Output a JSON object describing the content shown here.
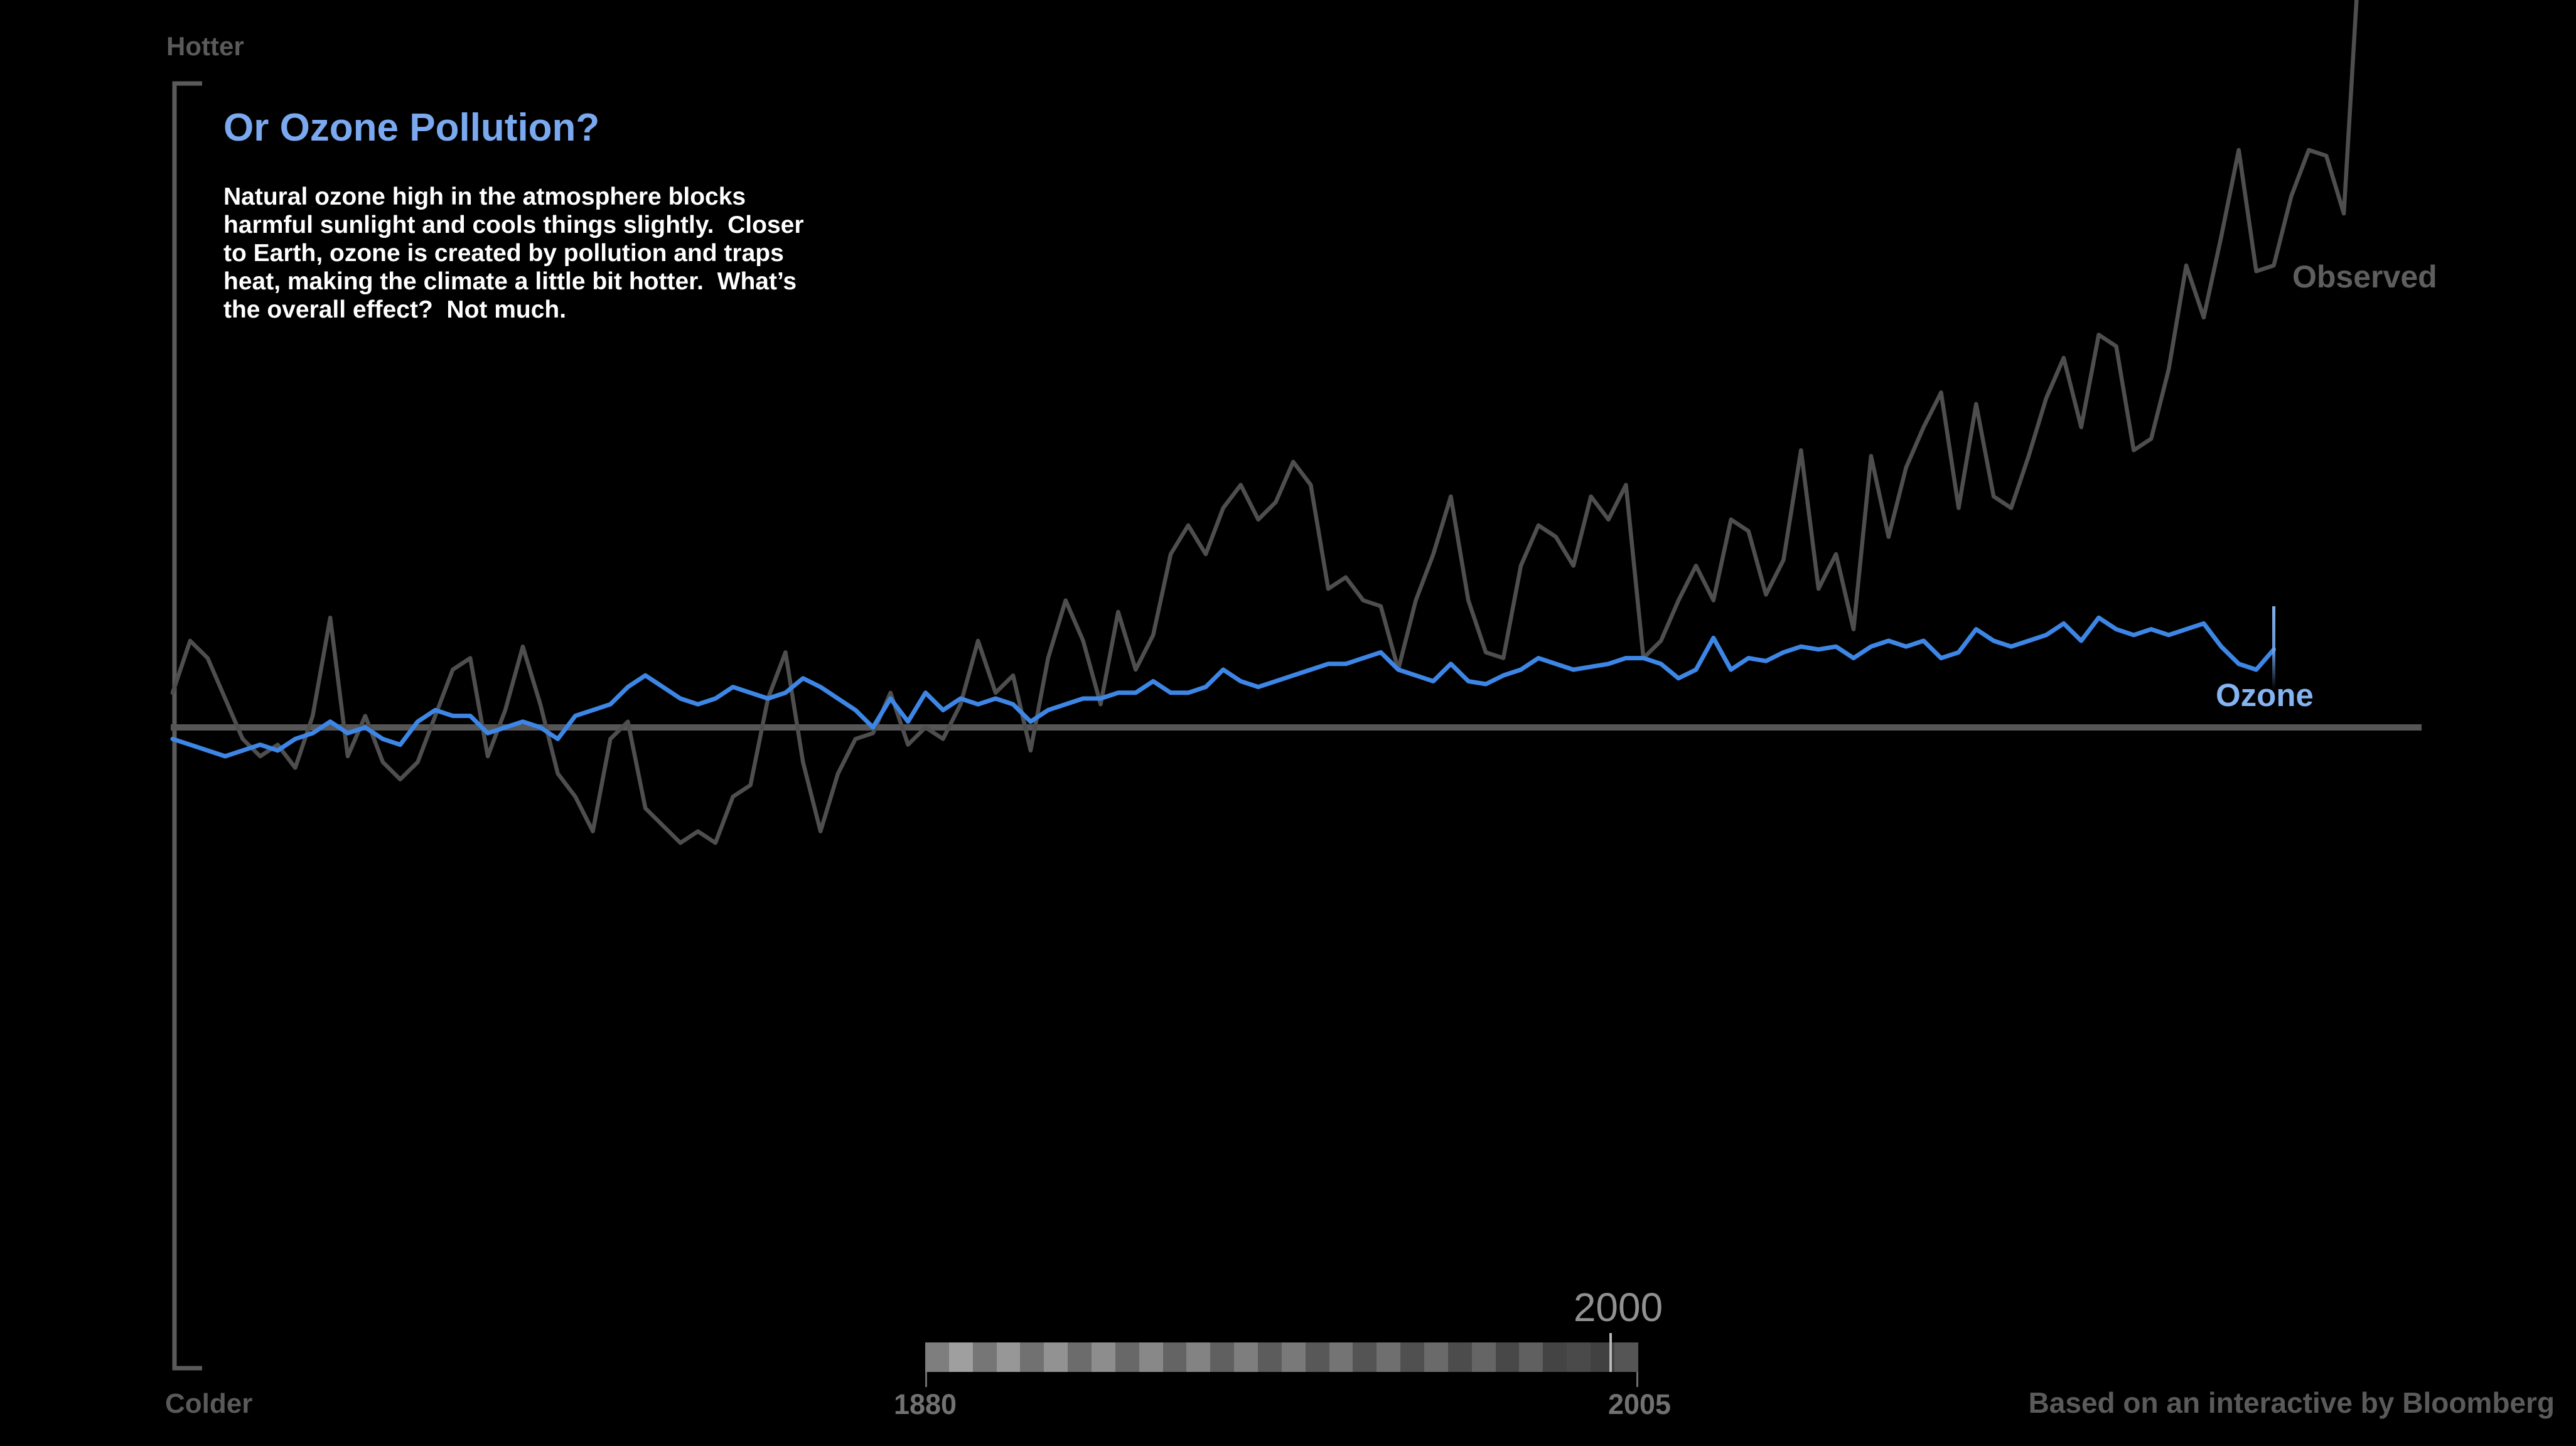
{
  "page": {
    "background": "#000000"
  },
  "axis": {
    "top_label": "Hotter",
    "bottom_label": "Colder",
    "bracket_color": "#5a5a5a",
    "baseline_color": "#565656"
  },
  "story": {
    "title": "Or Ozone Pollution?",
    "title_color": "#7aa9f0",
    "body": "Natural ozone high in the atmosphere blocks\nharmful sunlight and cools things slightly.  Closer\nto Earth, ozone is created by pollution and traps\nheat, making the climate a little bit hotter.  What’s\nthe overall effect?  Not much."
  },
  "chart_data": {
    "type": "line",
    "title": "Or Ozone Pollution?",
    "x_range": [
      1880,
      2005
    ],
    "start_year": 1880,
    "baseline": 0,
    "ylim": [
      -1.24,
      1.26
    ],
    "grid": false,
    "legend": "inline-labels",
    "y_axis_top_label": "Hotter",
    "y_axis_bottom_label": "Colder",
    "cursor_year": 2000,
    "units": "temperature anomaly (relative to zero baseline)",
    "series": [
      {
        "name": "Observed",
        "color": "#4e4e4e",
        "label_color": "#5e5e5e",
        "start_year": 1880,
        "values": [
          0.06,
          0.15,
          0.12,
          0.05,
          -0.02,
          -0.05,
          -0.03,
          -0.07,
          0.02,
          0.19,
          -0.05,
          0.02,
          -0.06,
          -0.09,
          -0.06,
          0.02,
          0.1,
          0.12,
          -0.05,
          0.03,
          0.14,
          0.04,
          -0.08,
          -0.12,
          -0.18,
          -0.02,
          0.01,
          -0.14,
          -0.17,
          -0.2,
          -0.18,
          -0.2,
          -0.12,
          -0.1,
          0.05,
          0.13,
          -0.06,
          -0.18,
          -0.08,
          -0.02,
          -0.01,
          0.06,
          -0.03,
          0.0,
          -0.02,
          0.04,
          0.15,
          0.06,
          0.09,
          -0.04,
          0.12,
          0.22,
          0.15,
          0.04,
          0.2,
          0.1,
          0.16,
          0.3,
          0.35,
          0.3,
          0.38,
          0.42,
          0.36,
          0.39,
          0.46,
          0.42,
          0.24,
          0.26,
          0.22,
          0.21,
          0.1,
          0.22,
          0.3,
          0.4,
          0.22,
          0.13,
          0.12,
          0.28,
          0.35,
          0.33,
          0.28,
          0.4,
          0.36,
          0.42,
          0.12,
          0.15,
          0.22,
          0.28,
          0.22,
          0.36,
          0.34,
          0.23,
          0.29,
          0.48,
          0.24,
          0.3,
          0.17,
          0.47,
          0.33,
          0.45,
          0.52,
          0.58,
          0.38,
          0.56,
          0.4,
          0.38,
          0.47,
          0.57,
          0.64,
          0.52,
          0.68,
          0.66,
          0.48,
          0.5,
          0.62,
          0.8,
          0.71,
          0.85,
          1.0,
          0.79,
          0.8,
          0.92,
          1.0,
          0.99,
          0.89,
          1.4
        ]
      },
      {
        "name": "Ozone",
        "color": "#3d86e6",
        "label_color": "#85b4f3",
        "start_year": 1880,
        "end_marker": "vertical-cursor",
        "values": [
          -0.02,
          -0.03,
          -0.04,
          -0.05,
          -0.04,
          -0.03,
          -0.04,
          -0.02,
          -0.01,
          0.01,
          -0.01,
          0.0,
          -0.02,
          -0.03,
          0.01,
          0.03,
          0.02,
          0.02,
          -0.01,
          0.0,
          0.01,
          0.0,
          -0.02,
          0.02,
          0.03,
          0.04,
          0.07,
          0.09,
          0.07,
          0.05,
          0.04,
          0.05,
          0.07,
          0.06,
          0.05,
          0.06,
          0.085,
          0.07,
          0.05,
          0.03,
          0.0,
          0.05,
          0.01,
          0.06,
          0.03,
          0.05,
          0.04,
          0.05,
          0.04,
          0.01,
          0.03,
          0.04,
          0.05,
          0.05,
          0.06,
          0.06,
          0.08,
          0.06,
          0.06,
          0.07,
          0.1,
          0.08,
          0.07,
          0.08,
          0.09,
          0.1,
          0.11,
          0.11,
          0.12,
          0.13,
          0.1,
          0.09,
          0.08,
          0.11,
          0.08,
          0.075,
          0.09,
          0.1,
          0.12,
          0.11,
          0.1,
          0.105,
          0.11,
          0.12,
          0.12,
          0.11,
          0.085,
          0.1,
          0.155,
          0.1,
          0.12,
          0.115,
          0.13,
          0.14,
          0.135,
          0.14,
          0.12,
          0.14,
          0.15,
          0.14,
          0.15,
          0.12,
          0.13,
          0.17,
          0.15,
          0.14,
          0.15,
          0.16,
          0.18,
          0.15,
          0.19,
          0.17,
          0.16,
          0.17,
          0.16,
          0.17,
          0.18,
          0.14,
          0.11,
          0.1,
          0.135
        ]
      }
    ],
    "annotations": [
      {
        "text": "Observed",
        "color": "#5e5e5e"
      },
      {
        "text": "Ozone",
        "color": "#85b4f3"
      }
    ]
  },
  "labels": {
    "observed": "Observed",
    "ozone": "Ozone"
  },
  "timeline": {
    "start_label": "1880",
    "end_label": "2005",
    "cursor_label": "2000",
    "cursor_year": 2000,
    "start_year": 1880,
    "end_year": 2005,
    "tick_color": "#b9b9b9",
    "stripes": [
      "#7e7e7e",
      "#9f9f9f",
      "#767676",
      "#979797",
      "#717171",
      "#929292",
      "#6c6c6c",
      "#8d8d8d",
      "#686868",
      "#888888",
      "#646464",
      "#838383",
      "#606060",
      "#7e7e7e",
      "#5c5c5c",
      "#797979",
      "#585858",
      "#747474",
      "#545454",
      "#6f6f6f",
      "#505050",
      "#6a6a6a",
      "#4c4c4c",
      "#656565",
      "#484848",
      "#606060",
      "#444444",
      "#4a4a4a",
      "#414141",
      "#555555"
    ]
  },
  "footer": {
    "attribution": "Based on an interactive by Bloomberg"
  }
}
